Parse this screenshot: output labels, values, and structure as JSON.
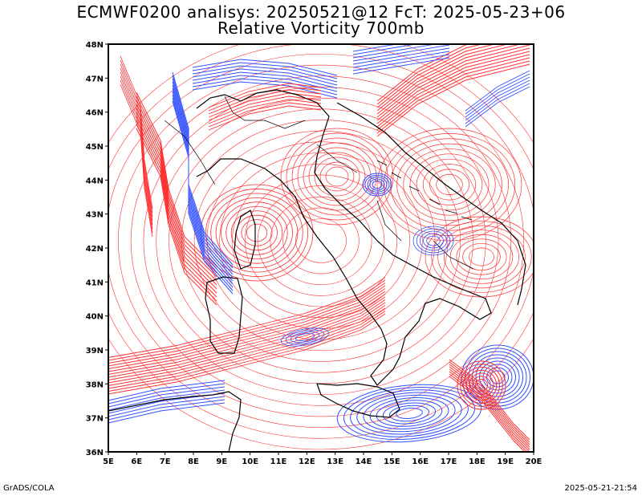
{
  "header": {
    "title_line1": "ECMWF0200 analisys: 20250521@12 FcT: 2025-05-23+06",
    "title_line2": "Relative Vorticity 700mb"
  },
  "map": {
    "lon_labels": [
      "5E",
      "6E",
      "7E",
      "8E",
      "9E",
      "10E",
      "11E",
      "12E",
      "13E",
      "14E",
      "15E",
      "16E",
      "17E",
      "18E",
      "19E",
      "20E"
    ],
    "lat_labels": [
      "36N",
      "37N",
      "38N",
      "39N",
      "40N",
      "41N",
      "42N",
      "43N",
      "44N",
      "45N",
      "46N",
      "47N",
      "48N"
    ],
    "lon_range": [
      5,
      20
    ],
    "lat_range": [
      36,
      48
    ],
    "colors": {
      "positive_vorticity": "#ff3030",
      "negative_vorticity": "#3050ff",
      "coastline": "#000000"
    }
  },
  "footer": {
    "left": "GrADS/COLA",
    "right": "2025-05-21-21:54"
  }
}
